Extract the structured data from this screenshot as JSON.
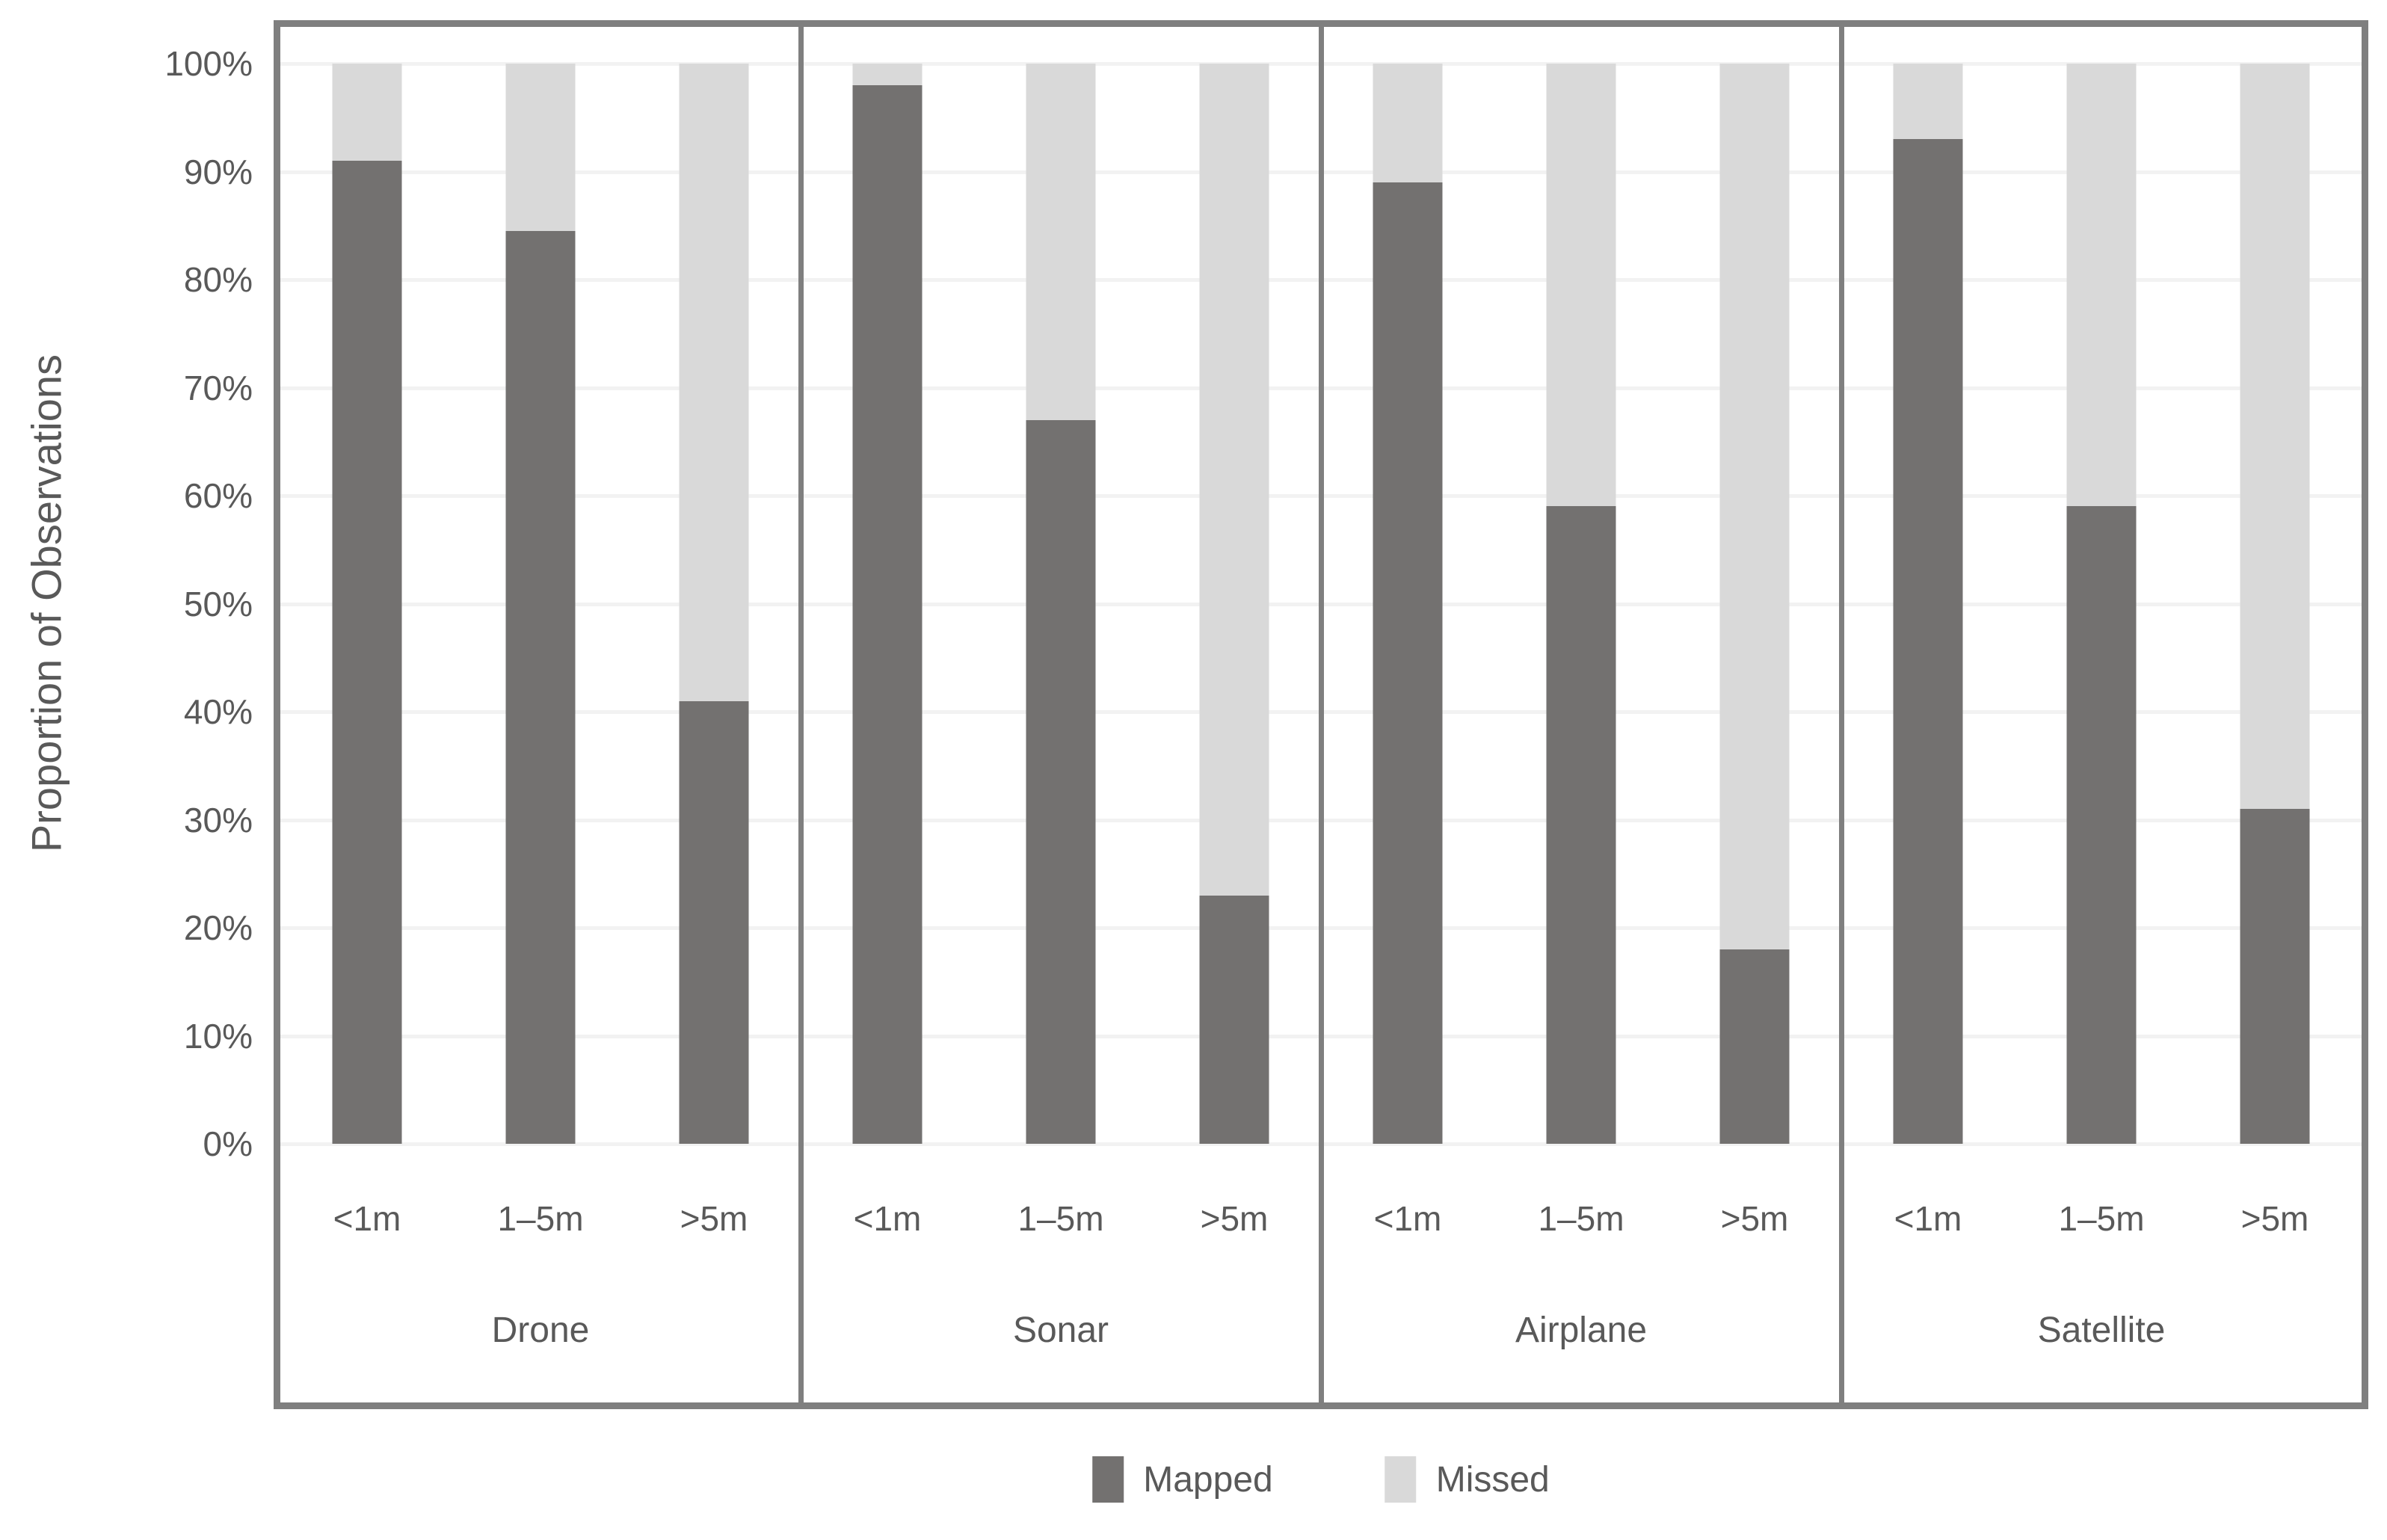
{
  "page": {
    "background": "#ffffff"
  },
  "chart_data": {
    "type": "bar",
    "stacked_100": true,
    "title": "",
    "ylabel": "Proportion of Observations",
    "xlabel": "",
    "ylim": [
      0,
      100
    ],
    "ytick_step": 10,
    "y_ticks_top_to_bottom": [
      "100%",
      "90%",
      "80%",
      "70%",
      "60%",
      "50%",
      "40%",
      "30%",
      "20%",
      "10%",
      "0%"
    ],
    "grid": true,
    "legend_position": "bottom-center",
    "groups": [
      "Drone",
      "Sonar",
      "Airplane",
      "Satellite"
    ],
    "categories": [
      "<1m",
      "1–5m",
      ">5m"
    ],
    "series": [
      {
        "name": "Mapped",
        "color": "#737170",
        "values": [
          [
            91,
            84.5,
            41
          ],
          [
            98,
            67,
            23
          ],
          [
            89,
            59,
            18
          ],
          [
            93,
            59,
            31
          ]
        ]
      },
      {
        "name": "Missed",
        "color": "#d9d9d9",
        "values": [
          [
            9,
            15.5,
            59
          ],
          [
            2,
            33,
            77
          ],
          [
            11,
            41,
            82
          ],
          [
            7,
            41,
            69
          ]
        ]
      }
    ],
    "colors": {
      "frame": "#7f7f7f",
      "separator": "#7f7f7f",
      "gridline": "#f2f2f2",
      "text": "#595959",
      "background": "#ffffff"
    }
  }
}
